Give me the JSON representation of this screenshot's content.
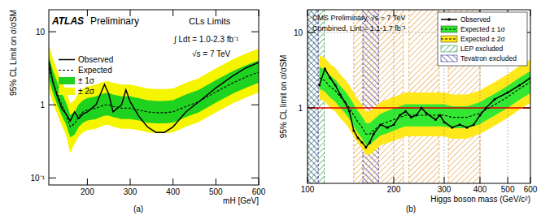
{
  "chart_data": [
    {
      "type": "line",
      "label": "(a)",
      "x_label": "mH [GeV]",
      "y_label": "95% CL Limit on σ/σSM",
      "annotations": [
        "ATLAS",
        "Preliminary",
        "CLs Limits",
        "∫ Ldt = 1.0-2.3 fb⁻¹",
        "√s = 7 TeV"
      ],
      "log": "y",
      "grid": false,
      "legend": "top-left",
      "xlim": [
        110,
        600
      ],
      "xticks": [
        200,
        300,
        400,
        500,
        600
      ],
      "ylim": [
        0.08,
        20
      ],
      "yticks": [
        {
          "value": 0.1,
          "label": "10⁻¹"
        },
        1,
        10
      ],
      "x": [
        110,
        115,
        120,
        130,
        140,
        150,
        160,
        170,
        180,
        190,
        200,
        220,
        240,
        250,
        260,
        280,
        290,
        300,
        320,
        340,
        360,
        380,
        400,
        430,
        460,
        500,
        540,
        570,
        600
      ],
      "series": [
        {
          "name": "Observed",
          "color": "#000000",
          "line_style": "solid",
          "marker": "none",
          "values": [
            4.0,
            2.8,
            2.0,
            1.3,
            0.9,
            0.75,
            0.6,
            0.8,
            0.65,
            0.75,
            0.8,
            1.0,
            1.9,
            1.4,
            0.8,
            1.0,
            1.6,
            1.1,
            0.7,
            0.5,
            0.42,
            0.42,
            0.5,
            0.8,
            1.1,
            1.7,
            2.5,
            3.2,
            3.8
          ]
        },
        {
          "name": "Expected",
          "color": "#000000",
          "line_style": "dashed",
          "marker": "none",
          "values": [
            3.2,
            2.5,
            2.0,
            1.4,
            1.0,
            0.75,
            0.5,
            0.55,
            0.7,
            0.8,
            0.85,
            0.9,
            1.0,
            1.0,
            0.95,
            0.9,
            0.9,
            0.9,
            0.85,
            0.8,
            0.78,
            0.78,
            0.8,
            0.95,
            1.1,
            1.5,
            2.0,
            2.4,
            2.8
          ]
        },
        {
          "name": "± 1σ",
          "type": "band",
          "color": "#1fd21f",
          "lower": [
            2.29,
            1.79,
            1.43,
            1.0,
            0.71,
            0.54,
            0.36,
            0.39,
            0.5,
            0.57,
            0.61,
            0.64,
            0.71,
            0.71,
            0.68,
            0.64,
            0.64,
            0.64,
            0.61,
            0.57,
            0.56,
            0.56,
            0.57,
            0.68,
            0.79,
            1.07,
            1.43,
            1.71,
            2.0
          ],
          "upper": [
            4.64,
            3.63,
            2.9,
            2.03,
            1.45,
            1.09,
            0.73,
            0.8,
            1.02,
            1.16,
            1.23,
            1.31,
            1.45,
            1.45,
            1.38,
            1.31,
            1.31,
            1.31,
            1.23,
            1.16,
            1.13,
            1.13,
            1.16,
            1.38,
            1.6,
            2.18,
            2.9,
            3.48,
            4.06
          ]
        },
        {
          "name": "± 2σ",
          "type": "band",
          "color": "#f5f500",
          "lower": [
            1.68,
            1.32,
            1.05,
            0.74,
            0.53,
            0.39,
            0.22,
            0.29,
            0.37,
            0.42,
            0.45,
            0.47,
            0.53,
            0.53,
            0.5,
            0.47,
            0.47,
            0.47,
            0.45,
            0.42,
            0.41,
            0.41,
            0.42,
            0.5,
            0.58,
            0.79,
            1.05,
            1.26,
            1.47
          ],
          "upper": [
            6.72,
            5.25,
            4.2,
            2.94,
            2.1,
            1.58,
            1.05,
            1.16,
            1.47,
            1.68,
            1.79,
            1.89,
            2.1,
            2.1,
            2.0,
            1.89,
            1.89,
            1.89,
            1.79,
            1.68,
            1.64,
            1.64,
            1.68,
            2.0,
            2.31,
            3.15,
            4.2,
            5.04,
            5.88
          ]
        }
      ]
    },
    {
      "type": "line",
      "label": "(b)",
      "x_label": "Higgs boson mass (GeV/c²)",
      "y_label": "95% CL limit on σ/σSM",
      "annotations": [
        "CMS Preliminary, √s = 7 TeV",
        "Combined, Lint = 1.1-1.7 fb⁻¹"
      ],
      "log": true,
      "grid": true,
      "legend": "top-right",
      "xlim": [
        100,
        600
      ],
      "xticks": [
        100,
        200,
        300,
        400,
        500,
        600
      ],
      "ylim": [
        0.1,
        20
      ],
      "yticks": [
        1,
        10
      ],
      "hline": 1,
      "x": [
        110,
        115,
        120,
        125,
        130,
        135,
        140,
        145,
        150,
        155,
        160,
        165,
        170,
        180,
        190,
        200,
        210,
        220,
        230,
        240,
        250,
        260,
        280,
        290,
        300,
        320,
        340,
        360,
        380,
        400,
        420,
        450,
        500,
        550,
        600
      ],
      "series": [
        {
          "name": "Observed",
          "color": "#000000",
          "line_style": "solid",
          "marker": "circle",
          "values": [
            2.0,
            3.3,
            2.5,
            2.0,
            1.5,
            1.2,
            0.9,
            0.5,
            0.4,
            0.35,
            0.3,
            0.35,
            0.45,
            0.6,
            0.55,
            0.6,
            0.8,
            0.9,
            0.75,
            0.8,
            1.0,
            0.85,
            0.7,
            0.8,
            0.65,
            0.55,
            0.6,
            0.55,
            0.6,
            0.8,
            1.0,
            1.3,
            1.6,
            2.0,
            2.5
          ]
        },
        {
          "color": "#000000",
          "line_style": "dashed",
          "marker": "none",
          "values": [
            2.5,
            2.3,
            1.9,
            1.7,
            1.4,
            1.2,
            1.0,
            0.8,
            0.65,
            0.55,
            0.45,
            0.45,
            0.5,
            0.6,
            0.65,
            0.7,
            0.75,
            0.8,
            0.8,
            0.8,
            0.8,
            0.8,
            0.8,
            0.8,
            0.8,
            0.75,
            0.75,
            0.75,
            0.8,
            0.85,
            0.95,
            1.1,
            1.4,
            1.8,
            2.2
          ]
        },
        {
          "name": "Expected ± 1σ",
          "type": "band",
          "color": "#33e833",
          "lower": [
            1.79,
            1.64,
            1.36,
            1.21,
            1.0,
            0.86,
            0.71,
            0.57,
            0.46,
            0.39,
            0.32,
            0.32,
            0.36,
            0.43,
            0.46,
            0.5,
            0.54,
            0.57,
            0.57,
            0.57,
            0.57,
            0.57,
            0.57,
            0.57,
            0.57,
            0.54,
            0.54,
            0.54,
            0.57,
            0.61,
            0.68,
            0.79,
            1.0,
            1.29,
            1.57
          ],
          "upper": [
            3.5,
            3.22,
            2.66,
            2.38,
            1.96,
            1.68,
            1.4,
            1.12,
            0.91,
            0.77,
            0.63,
            0.63,
            0.7,
            0.84,
            0.91,
            0.98,
            1.05,
            1.12,
            1.12,
            1.12,
            1.12,
            1.12,
            1.12,
            1.12,
            1.12,
            1.05,
            1.05,
            1.05,
            1.12,
            1.19,
            1.33,
            1.54,
            1.96,
            2.52,
            3.08
          ]
        },
        {
          "name": "Expected ± 2σ",
          "type": "band",
          "color": "#ffe81a",
          "lower": [
            1.32,
            1.21,
            1.0,
            0.89,
            0.74,
            0.63,
            0.53,
            0.42,
            0.34,
            0.29,
            0.24,
            0.24,
            0.26,
            0.32,
            0.34,
            0.37,
            0.39,
            0.42,
            0.42,
            0.42,
            0.42,
            0.42,
            0.42,
            0.42,
            0.42,
            0.39,
            0.39,
            0.39,
            0.42,
            0.45,
            0.5,
            0.58,
            0.74,
            0.95,
            1.16
          ],
          "upper": [
            5.0,
            4.6,
            3.8,
            3.4,
            2.8,
            2.4,
            2.0,
            1.6,
            1.3,
            1.1,
            0.9,
            0.9,
            1.0,
            1.2,
            1.3,
            1.4,
            1.5,
            1.6,
            1.6,
            1.6,
            1.6,
            1.6,
            1.6,
            1.6,
            1.6,
            1.5,
            1.5,
            1.5,
            1.6,
            1.7,
            1.9,
            2.2,
            2.8,
            3.6,
            4.4
          ]
        }
      ],
      "regions": [
        {
          "name": "LEP excluded",
          "color": "#2e9a4e",
          "ranges": [
            [
              100,
              114.4
            ]
          ]
        },
        {
          "name": "Tevatron excluded",
          "color": "#2a2a8c",
          "ranges": [
            [
              100,
              109
            ],
            [
              156,
              177
            ]
          ]
        },
        {
          "color": "#e89a3c",
          "ranges": [
            [
              145,
              216
            ],
            [
              226,
              288
            ],
            [
              310,
              400
            ]
          ]
        }
      ]
    }
  ]
}
